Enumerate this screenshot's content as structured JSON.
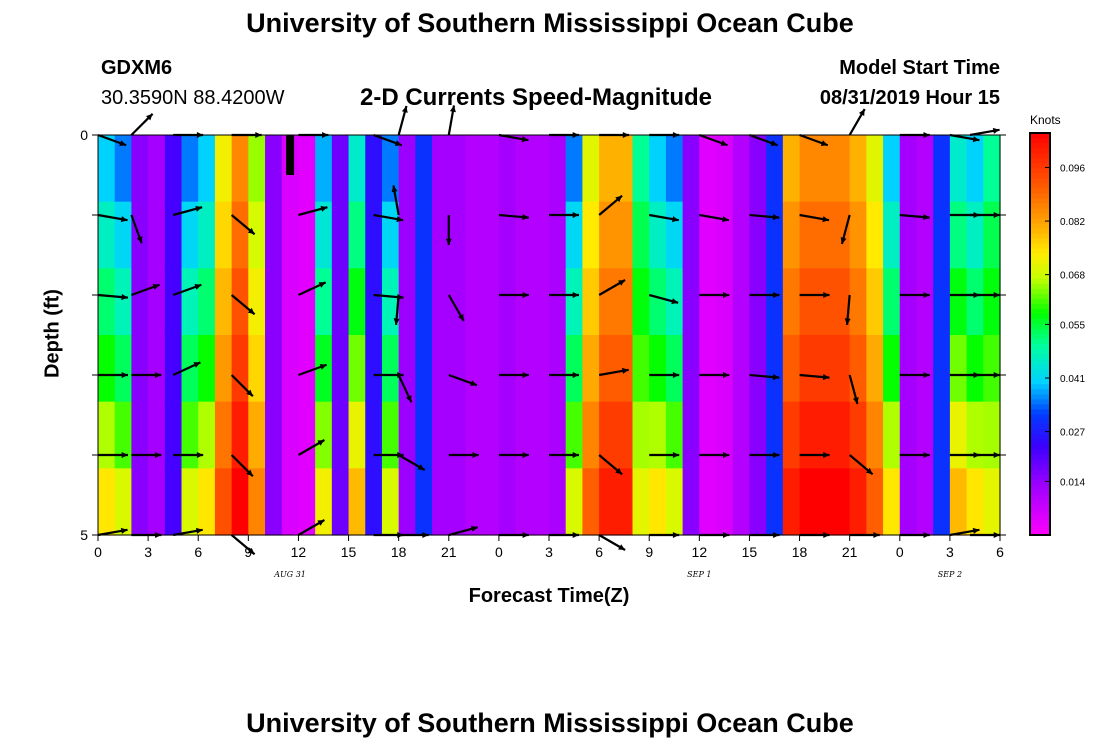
{
  "header": {
    "title_top": "University of Southern Mississippi Ocean Cube",
    "station": "GDXM6",
    "coords": "30.3590N 88.4200W",
    "subtitle": "2-D Currents Speed-Magnitude",
    "model_label": "Model Start Time",
    "model_time": "08/31/2019 Hour 15",
    "title_bottom": "University of Southern Mississippi Ocean Cube"
  },
  "chart_data": {
    "type": "heatmap",
    "title": "2-D Currents Speed-Magnitude",
    "xlabel": "Forecast Time(Z)",
    "ylabel": "Depth (ft)",
    "ylim": [
      0,
      5
    ],
    "y_tick_labels": [
      "0",
      "5"
    ],
    "x_tick_labels": [
      "0",
      "3",
      "6",
      "9",
      "12",
      "15",
      "18",
      "21",
      "0",
      "3",
      "6",
      "9",
      "12",
      "15",
      "18",
      "21",
      "0",
      "3",
      "6"
    ],
    "date_labels": [
      {
        "text": "AUG 31",
        "x_hour": 11.5
      },
      {
        "text": "SEP 1",
        "x_hour": 36
      },
      {
        "text": "SEP 2",
        "x_hour": 51
      }
    ],
    "x_range_hours": [
      0,
      54
    ],
    "colorbar": {
      "unit": "Knots",
      "ticks": [
        "0.096",
        "0.082",
        "0.068",
        "0.055",
        "0.041",
        "0.027",
        "0.014"
      ],
      "min": 0.0,
      "max": 0.105
    },
    "column_speeds": [
      0.04,
      0.035,
      0.015,
      0.012,
      0.022,
      0.035,
      0.04,
      0.072,
      0.085,
      0.065,
      0.015,
      0.005,
      0.004,
      0.038,
      0.018,
      0.045,
      0.025,
      0.035,
      0.013,
      0.03,
      0.012,
      0.012,
      0.01,
      0.01,
      0.012,
      0.01,
      0.01,
      0.011,
      0.035,
      0.07,
      0.08,
      0.08,
      0.05,
      0.04,
      0.035,
      0.015,
      0.004,
      0.005,
      0.01,
      0.015,
      0.03,
      0.08,
      0.085,
      0.085,
      0.085,
      0.08,
      0.07,
      0.04,
      0.012,
      0.01,
      0.03,
      0.045,
      0.04,
      0.05
    ],
    "row_offsets": [
      0.0,
      0.006,
      0.012,
      0.018,
      0.026,
      0.034
    ],
    "vectors": {
      "x_hours": [
        0,
        2,
        4.5,
        8,
        12,
        16.5,
        18,
        21,
        24,
        27,
        30,
        33,
        36,
        39,
        42,
        45,
        48,
        51,
        54
      ],
      "rows_depth": [
        0,
        1,
        2,
        3,
        4,
        5
      ],
      "angle_deg": [
        [
          20,
          -45,
          0,
          0,
          0,
          20,
          -75,
          -80,
          10,
          0,
          0,
          0,
          20,
          20,
          20,
          -60,
          0,
          10,
          -10
        ],
        [
          10,
          70,
          -15,
          40,
          -15,
          10,
          -100,
          90,
          5,
          0,
          -40,
          10,
          10,
          5,
          10,
          105,
          5,
          0,
          0
        ],
        [
          5,
          -20,
          -20,
          40,
          -25,
          5,
          95,
          60,
          0,
          0,
          -30,
          15,
          0,
          0,
          0,
          95,
          0,
          0,
          0
        ],
        [
          0,
          0,
          -25,
          45,
          -20,
          0,
          65,
          20,
          0,
          0,
          -10,
          0,
          0,
          5,
          5,
          75,
          0,
          0,
          0
        ],
        [
          0,
          0,
          0,
          45,
          -30,
          0,
          30,
          0,
          0,
          0,
          40,
          0,
          0,
          0,
          0,
          40,
          0,
          0,
          0
        ],
        [
          -10,
          0,
          -10,
          40,
          -30,
          0,
          0,
          -15,
          0,
          0,
          30,
          0,
          0,
          0,
          0,
          0,
          0,
          -10,
          0
        ]
      ]
    }
  }
}
